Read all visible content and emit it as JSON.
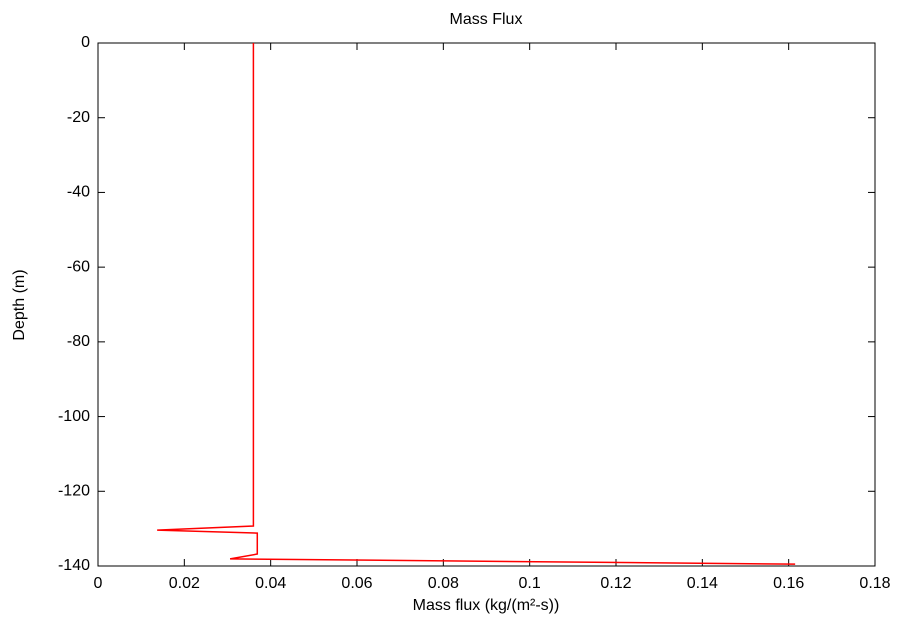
{
  "chart_data": {
    "type": "line",
    "title": "Mass Flux",
    "xlabel": "Mass flux (kg/(m²-s))",
    "ylabel": "Depth (m)",
    "series": [
      {
        "color": "#ff0000",
        "x": [
          0.036,
          0.036,
          0.0137,
          0.0369,
          0.0369,
          0.0306,
          0.1615
        ],
        "y": [
          0,
          -129.3,
          -130.4,
          -131.2,
          -136.8,
          -138.1,
          -139.5
        ]
      }
    ],
    "xlim": [
      0,
      0.18
    ],
    "xticks": [
      0,
      0.02,
      0.04,
      0.06,
      0.08,
      0.1,
      0.12,
      0.14,
      0.16,
      0.18
    ],
    "ylim": [
      -140,
      0
    ],
    "yticks": [
      0,
      -20,
      -40,
      -60,
      -80,
      -100,
      -120,
      -140
    ],
    "grid": false
  }
}
